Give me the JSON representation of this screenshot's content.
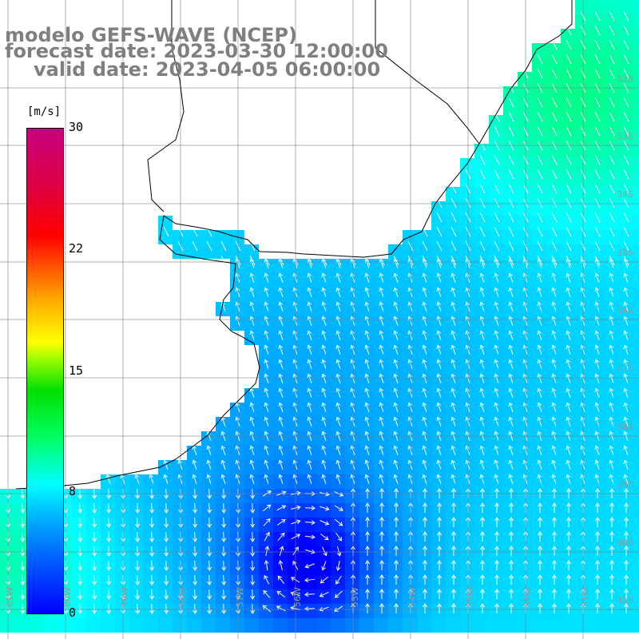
{
  "header": {
    "model_line": "modelo GEFS-WAVE (NCEP)",
    "forecast_line": "forecast date: 2023-03-30 12:00:00",
    "valid_line": "valid date: 2023-04-05 06:00:00"
  },
  "colorbar": {
    "unit": "[m/s]",
    "ticks": [
      "30",
      "22",
      "15",
      "8",
      "0"
    ],
    "colors": [
      "#0000ff",
      "#00b4ff",
      "#00ffff",
      "#00e000",
      "#ffff00",
      "#ff6600",
      "#ff0000",
      "#c8007f"
    ]
  },
  "map": {
    "lat_labels": [
      "32S",
      "33S",
      "34S",
      "35S",
      "36S",
      "37S",
      "38S",
      "39S",
      "40S",
      "41S"
    ],
    "lon_labels": [
      "61W",
      "60W",
      "59W",
      "58W",
      "57W",
      "56W",
      "55W",
      "54W",
      "53W",
      "52W",
      "51W"
    ],
    "arrow_color": "#ffffff",
    "coast_color": "#000000",
    "grid_color": "#808080"
  }
}
